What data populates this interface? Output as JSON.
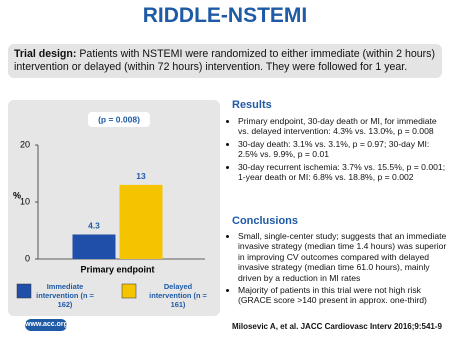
{
  "title": "RIDDLE-NSTEMI",
  "trial_design": {
    "label": "Trial design:",
    "text": "Patients with NSTEMI were randomized to either immediate (within 2 hours) intervention or delayed (within 72 hours) intervention. They were followed for 1 year."
  },
  "chart_data": {
    "type": "bar",
    "categories": [
      "Primary endpoint"
    ],
    "ylabel": "%",
    "annotation": "(p = 0.008)",
    "series": [
      {
        "name": "Immediate intervention (n = 162)",
        "color": "#1f4fa8",
        "values": [
          4.3
        ]
      },
      {
        "name": "Delayed intervention (n = 161)",
        "color": "#f5c400",
        "values": [
          13
        ]
      }
    ],
    "ylim": [
      0,
      20
    ],
    "yticks": [
      0,
      10,
      20
    ]
  },
  "results": {
    "heading": "Results",
    "items": [
      "Primary endpoint, 30-day death or MI, for immediate vs. delayed intervention: 4.3% vs. 13.0%, p = 0.008",
      "30-day death: 3.1% vs. 3.1%, p = 0.97; 30-day MI: 2.5% vs. 9.9%, p = 0.01",
      "30-day recurrent ischemia: 3.7% vs. 15.5%, p = 0.001; 1-year death or MI: 6.8% vs. 18.8%, p = 0.002"
    ]
  },
  "conclusions": {
    "heading": "Conclusions",
    "items": [
      "Small, single-center study; suggests that an immediate invasive strategy (median time 1.4 hours) was superior in improving CV outcomes compared with delayed invasive strategy (median time 61.0 hours), mainly driven by a reduction in MI rates",
      "Majority of patients in this trial were not high risk (GRACE score >140 present in approx. one-third)"
    ]
  },
  "footer": {
    "website": "www.acc.org",
    "citation": "Milosevic A, et al. JACC Cardiovasc Interv 2016;9:541-9"
  }
}
